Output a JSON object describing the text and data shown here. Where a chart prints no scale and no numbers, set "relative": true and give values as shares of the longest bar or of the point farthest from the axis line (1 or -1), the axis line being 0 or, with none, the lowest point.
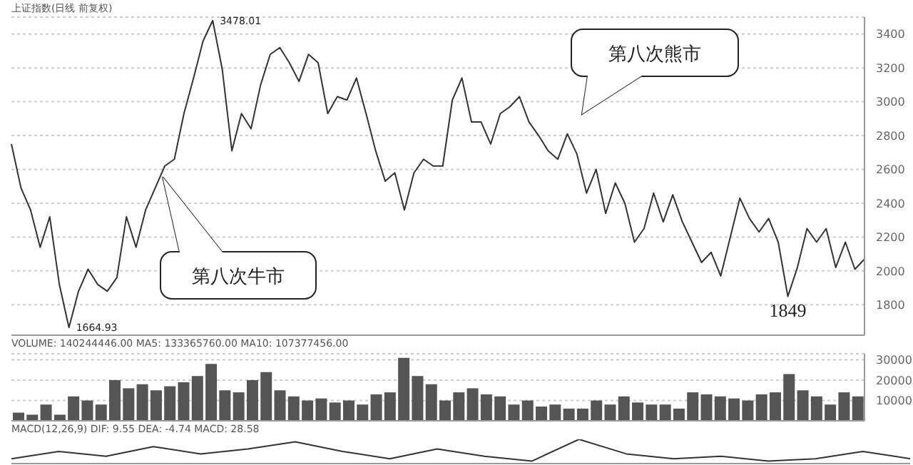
{
  "chart_data": [
    {
      "type": "line",
      "title": "上证指数(日线 前复权)",
      "categories": [
        null,
        null,
        null,
        null,
        null,
        null,
        null,
        null,
        null,
        null,
        null,
        null,
        null,
        null,
        null,
        null,
        null,
        null,
        null,
        null,
        null,
        null,
        null,
        null,
        null,
        null,
        null,
        null,
        null,
        null,
        null,
        null,
        null,
        null,
        null,
        null,
        null,
        null,
        null,
        null,
        null,
        null,
        null,
        null,
        null,
        null,
        null,
        null,
        null,
        null,
        null,
        null,
        null,
        null,
        null,
        null,
        null,
        null,
        null,
        null,
        null,
        null,
        null,
        null,
        null,
        null,
        null,
        null,
        null,
        null,
        null,
        null,
        null,
        null,
        null,
        null,
        null,
        null,
        null,
        null,
        null,
        null,
        null,
        null,
        null,
        null,
        null,
        null,
        null,
        null
      ],
      "series": [
        {
          "color": "#333333",
          "values": [
            2750,
            2490,
            2360,
            2140,
            2320,
            1920,
            1665,
            1880,
            2010,
            1920,
            1880,
            1960,
            2320,
            2140,
            2360,
            2490,
            2620,
            2660,
            2930,
            3140,
            3360,
            3480,
            3190,
            2710,
            2930,
            2840,
            3100,
            3280,
            3320,
            3230,
            3120,
            3280,
            3230,
            2930,
            3030,
            3010,
            3140,
            2930,
            2710,
            2530,
            2580,
            2360,
            2580,
            2660,
            2620,
            2620,
            3010,
            3140,
            2880,
            2880,
            2750,
            2930,
            2970,
            3030,
            2880,
            2800,
            2710,
            2660,
            2810,
            2690,
            2460,
            2600,
            2340,
            2520,
            2400,
            2170,
            2250,
            2460,
            2290,
            2450,
            2290,
            2170,
            2050,
            2110,
            1970,
            2200,
            2430,
            2310,
            2230,
            2310,
            2170,
            1849,
            2020,
            2250,
            2170,
            2250,
            2020,
            2170,
            2010,
            2070
          ]
        }
      ],
      "ylim": [
        1620,
        3500
      ],
      "yticks": [
        1800,
        2000,
        2200,
        2400,
        2600,
        2800,
        3000,
        3200,
        3400
      ],
      "grid": "y",
      "tick_labels": "y",
      "marker": "none",
      "annotations": [
        "3478.01",
        "1664.93",
        "1849",
        "第八次牛市",
        "第八次熊市"
      ]
    },
    {
      "type": "bar",
      "title": "VOLUME: 140244446.00 MA5: 133365760.00 MA10: 107377456.00",
      "categories": [
        null,
        null,
        null,
        null,
        null,
        null,
        null,
        null,
        null,
        null,
        null,
        null,
        null,
        null,
        null,
        null,
        null,
        null,
        null,
        null,
        null,
        null,
        null,
        null,
        null,
        null,
        null,
        null,
        null,
        null,
        null,
        null,
        null,
        null,
        null,
        null,
        null,
        null,
        null,
        null,
        null,
        null,
        null,
        null,
        null,
        null,
        null,
        null,
        null,
        null,
        null,
        null,
        null,
        null,
        null,
        null,
        null,
        null,
        null,
        null,
        null,
        null
      ],
      "values": [
        4000,
        3000,
        8000,
        3000,
        12000,
        10000,
        8000,
        20000,
        16000,
        18000,
        15000,
        17000,
        19000,
        22000,
        28000,
        15000,
        14000,
        20000,
        24000,
        15000,
        12000,
        10000,
        11000,
        9000,
        10000,
        8000,
        13000,
        14000,
        31000,
        22000,
        18000,
        10000,
        14000,
        16000,
        13000,
        12000,
        8000,
        10000,
        7000,
        8000,
        6000,
        6000,
        10000,
        8000,
        12000,
        9000,
        8000,
        8000,
        6000,
        14000,
        13000,
        12000,
        11000,
        10000,
        13000,
        14000,
        23000,
        15000,
        12000,
        8000,
        14000,
        12000
      ],
      "color": "#555555",
      "ylim": [
        0,
        33000
      ],
      "yticks": [
        10000,
        20000,
        30000
      ],
      "grid": "y",
      "tick_labels": "y"
    },
    {
      "type": "line",
      "title": "MACD(12,26,9) DIF: 9.55 DEA: -4.74 MACD: 28.58",
      "relative": true,
      "categories": [
        null,
        null,
        null,
        null,
        null,
        null,
        null,
        null,
        null,
        null,
        null,
        null,
        null,
        null,
        null,
        null,
        null,
        null,
        null,
        null
      ],
      "series": [
        {
          "color": "#333333",
          "values": [
            0.2,
            0.5,
            0.3,
            0.7,
            0.4,
            0.6,
            0.9,
            0.5,
            0.2,
            0.6,
            0.3,
            0.1,
            1,
            0.4,
            0.2,
            0.3,
            0.1,
            0.2,
            0.5,
            0.2
          ]
        }
      ],
      "tick_labels": false
    }
  ]
}
